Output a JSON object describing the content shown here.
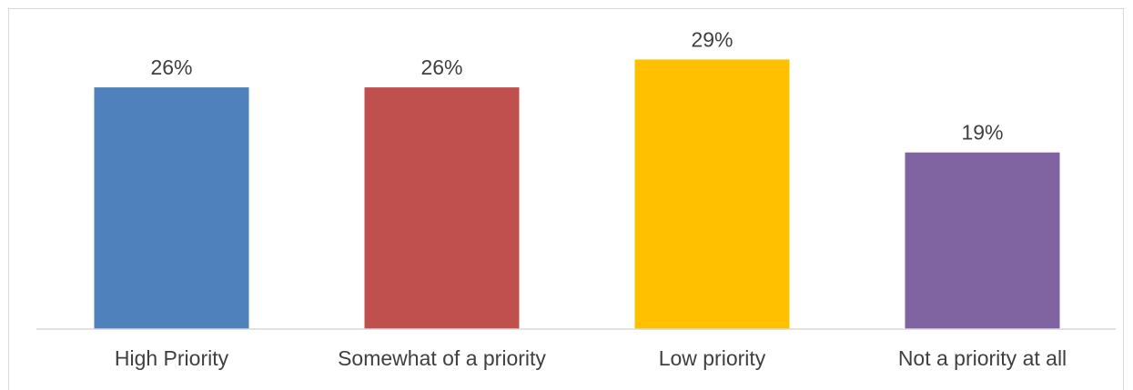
{
  "chart_data": {
    "type": "bar",
    "categories": [
      "High Priority",
      "Somewhat of a priority",
      "Low priority",
      "Not a priority at all"
    ],
    "values": [
      26,
      26,
      29,
      19
    ],
    "value_labels": [
      "26%",
      "26%",
      "29%",
      "19%"
    ],
    "colors": [
      "#4f81bd",
      "#c0504d",
      "#ffc000",
      "#8064a2"
    ],
    "ylim": [
      0,
      35
    ],
    "grid": false,
    "legend": "none"
  }
}
